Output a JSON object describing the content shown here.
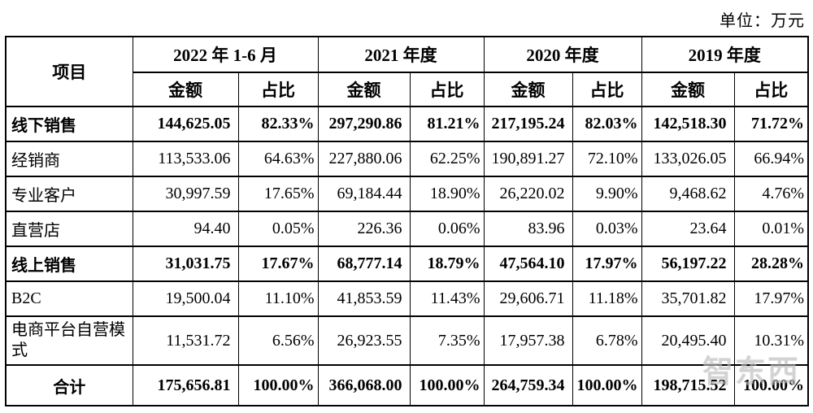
{
  "unit_label": "单位：万元",
  "watermark_text": "智东西",
  "table": {
    "header": {
      "item_label": "项目",
      "periods": [
        "2022 年 1-6 月",
        "2021 年度",
        "2020 年度",
        "2019 年度"
      ],
      "amount_label": "金额",
      "share_label": "占比"
    },
    "rows": [
      {
        "label": "线下销售",
        "style": "bold",
        "values": [
          "144,625.05",
          "82.33%",
          "297,290.86",
          "81.21%",
          "217,195.24",
          "82.03%",
          "142,518.30",
          "71.72%"
        ]
      },
      {
        "label": "经销商",
        "style": "normal",
        "values": [
          "113,533.06",
          "64.63%",
          "227,880.06",
          "62.25%",
          "190,891.27",
          "72.10%",
          "133,026.05",
          "66.94%"
        ]
      },
      {
        "label": "专业客户",
        "style": "normal",
        "values": [
          "30,997.59",
          "17.65%",
          "69,184.44",
          "18.90%",
          "26,220.02",
          "9.90%",
          "9,468.62",
          "4.76%"
        ]
      },
      {
        "label": "直营店",
        "style": "normal",
        "values": [
          "94.40",
          "0.05%",
          "226.36",
          "0.06%",
          "83.96",
          "0.03%",
          "23.64",
          "0.01%"
        ]
      },
      {
        "label": "线上销售",
        "style": "bold",
        "values": [
          "31,031.75",
          "17.67%",
          "68,777.14",
          "18.79%",
          "47,564.10",
          "17.97%",
          "56,197.22",
          "28.28%"
        ]
      },
      {
        "label": "B2C",
        "style": "normal",
        "values": [
          "19,500.04",
          "11.10%",
          "41,853.59",
          "11.43%",
          "29,606.71",
          "11.18%",
          "35,701.82",
          "17.97%"
        ]
      },
      {
        "label": "电商平台自营模式",
        "style": "tall",
        "values": [
          "11,531.72",
          "6.56%",
          "26,923.55",
          "7.35%",
          "17,957.38",
          "6.78%",
          "20,495.40",
          "10.31%"
        ]
      },
      {
        "label": "合计",
        "style": "total",
        "values": [
          "175,656.81",
          "100.00%",
          "366,068.00",
          "100.00%",
          "264,759.34",
          "100.00%",
          "198,715.52",
          "100.00%"
        ]
      }
    ]
  }
}
